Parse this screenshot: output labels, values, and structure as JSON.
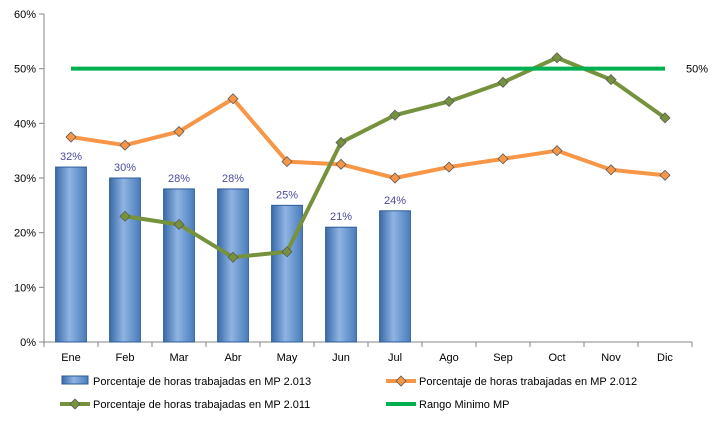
{
  "chart_data": {
    "type": "bar",
    "categories": [
      "Ene",
      "Feb",
      "Mar",
      "Abr",
      "May",
      "Jun",
      "Jul",
      "Ago",
      "Sep",
      "Oct",
      "Nov",
      "Dic"
    ],
    "ylim": [
      0,
      60
    ],
    "yticks": [
      0,
      10,
      20,
      30,
      40,
      50,
      60
    ],
    "ytick_format": "percent",
    "grid": false,
    "legend_position": "bottom",
    "series": [
      {
        "name": "Porcentaje de horas trabajadas en MP 2.013",
        "kind": "bar",
        "color": "#4f81bd",
        "values": [
          32,
          30,
          28,
          28,
          25,
          21,
          24,
          null,
          null,
          null,
          null,
          null
        ],
        "data_labels": [
          "32%",
          "30%",
          "28%",
          "28%",
          "25%",
          "21%",
          "24%",
          null,
          null,
          null,
          null,
          null
        ]
      },
      {
        "name": "Porcentaje de horas trabajadas en MP 2.012",
        "kind": "line",
        "color": "#f79646",
        "values": [
          37.5,
          36,
          38.5,
          44.5,
          33,
          32.5,
          30,
          32,
          33.5,
          35,
          31.5,
          30.5
        ]
      },
      {
        "name": "Porcentaje de horas trabajadas en MP 2.011",
        "kind": "line",
        "color": "#76923c",
        "values": [
          null,
          23,
          21.5,
          15.5,
          16.5,
          36.5,
          41.5,
          44,
          47.5,
          52,
          48,
          41
        ]
      },
      {
        "name": "Rango Minimo MP",
        "kind": "line",
        "color": "#00b050",
        "values": [
          50,
          50,
          50,
          50,
          50,
          50,
          50,
          50,
          50,
          50,
          50,
          50
        ],
        "end_label": "50%"
      }
    ]
  }
}
